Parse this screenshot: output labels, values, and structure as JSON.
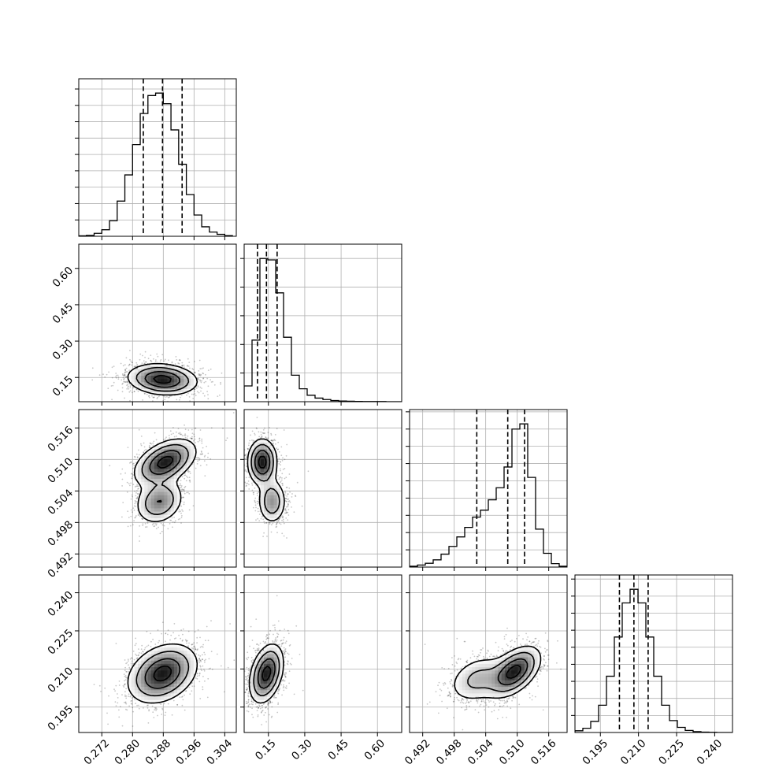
{
  "chart_data": {
    "type": "corner",
    "title": "",
    "params": [
      {
        "label": "",
        "range": [
          0.266,
          0.307
        ],
        "ticks": [
          0.272,
          0.28,
          0.288,
          0.296,
          0.304
        ],
        "tick_labels": [
          "0.272",
          "0.280",
          "0.288",
          "0.296",
          "0.304"
        ],
        "quantiles": [
          0.2828,
          0.2878,
          0.2929
        ],
        "median": 0.2878,
        "sigma": 0.0045
      },
      {
        "label": "",
        "range": [
          0.05,
          0.7
        ],
        "ticks": [
          0.15,
          0.3,
          0.45,
          0.6
        ],
        "tick_labels": [
          "0.15",
          "0.30",
          "0.45",
          "0.60"
        ],
        "quantiles": [
          0.105,
          0.142,
          0.186
        ],
        "median": 0.142,
        "sigma": 0.04
      },
      {
        "label": "",
        "range": [
          0.4895,
          0.5195
        ],
        "ticks": [
          0.492,
          0.498,
          0.504,
          0.51,
          0.516
        ],
        "tick_labels": [
          "0.492",
          "0.498",
          "0.504",
          "0.510",
          "0.516"
        ],
        "quantiles": [
          0.5023,
          0.5082,
          0.5114
        ],
        "median": 0.5082,
        "sigma": 0.004
      },
      {
        "label": "",
        "range": [
          0.185,
          0.247
        ],
        "ticks": [
          0.195,
          0.21,
          0.225,
          0.24
        ],
        "tick_labels": [
          "0.195",
          "0.210",
          "0.225",
          "0.240"
        ],
        "quantiles": [
          0.2025,
          0.2082,
          0.2138
        ],
        "median": 0.2082,
        "sigma": 0.0058
      }
    ],
    "histograms": [
      {
        "param": 0,
        "bin_edges": [
          0.266,
          0.268,
          0.27,
          0.272,
          0.274,
          0.276,
          0.278,
          0.28,
          0.282,
          0.284,
          0.286,
          0.288,
          0.29,
          0.292,
          0.294,
          0.296,
          0.298,
          0.3,
          0.302,
          0.304,
          0.306
        ],
        "counts": [
          3,
          6,
          18,
          40,
          95,
          215,
          375,
          560,
          750,
          860,
          875,
          810,
          650,
          440,
          255,
          130,
          58,
          26,
          12,
          4
        ]
      },
      {
        "param": 1,
        "bin_edges": [
          0.05,
          0.0825,
          0.115,
          0.1475,
          0.18,
          0.2125,
          0.245,
          0.2775,
          0.31,
          0.3425,
          0.375,
          0.4075,
          0.44,
          0.4725,
          0.505,
          0.5375,
          0.57,
          0.6025,
          0.635,
          0.6675,
          0.7
        ],
        "counts": [
          110,
          430,
          1000,
          990,
          760,
          450,
          185,
          90,
          45,
          25,
          15,
          8,
          5,
          3,
          2,
          1,
          1,
          1,
          0,
          0
        ]
      },
      {
        "param": 2,
        "bin_edges": [
          0.4895,
          0.491,
          0.4925,
          0.494,
          0.4955,
          0.497,
          0.4985,
          0.5,
          0.5015,
          0.503,
          0.5045,
          0.506,
          0.5075,
          0.509,
          0.5105,
          0.512,
          0.5135,
          0.515,
          0.5165,
          0.518,
          0.5195
        ],
        "counts": [
          5,
          12,
          22,
          42,
          75,
          120,
          175,
          230,
          290,
          330,
          390,
          460,
          580,
          800,
          830,
          520,
          220,
          80,
          20,
          5
        ]
      },
      {
        "param": 3,
        "bin_edges": [
          0.185,
          0.1881,
          0.1912,
          0.1943,
          0.1974,
          0.2005,
          0.2036,
          0.2067,
          0.2098,
          0.2129,
          0.216,
          0.2191,
          0.2222,
          0.2253,
          0.2284,
          0.2315,
          0.2346,
          0.2377,
          0.2408,
          0.2439,
          0.247
        ],
        "counts": [
          10,
          25,
          65,
          160,
          330,
          560,
          760,
          840,
          760,
          560,
          330,
          160,
          70,
          30,
          12,
          5,
          2,
          1,
          0,
          0
        ]
      }
    ],
    "pairs": [
      {
        "x_param": 0,
        "y_param": 1,
        "components": [
          {
            "mean": [
              0.2878,
              0.142
            ],
            "sd": [
              0.0045,
              0.032
            ],
            "rho": -0.15,
            "weight": 1.0
          }
        ]
      },
      {
        "x_param": 0,
        "y_param": 2,
        "components": [
          {
            "mean": [
              0.2885,
              0.5095
            ],
            "sd": [
              0.004,
              0.0022
            ],
            "rho": 0.45,
            "weight": 0.65
          },
          {
            "mean": [
              0.287,
              0.502
            ],
            "sd": [
              0.0032,
              0.0022
            ],
            "rho": 0.2,
            "weight": 0.35
          }
        ]
      },
      {
        "x_param": 1,
        "y_param": 2,
        "components": [
          {
            "mean": [
              0.125,
              0.5095
            ],
            "sd": [
              0.03,
              0.0022
            ],
            "rho": 0.0,
            "weight": 0.65
          },
          {
            "mean": [
              0.165,
              0.502
            ],
            "sd": [
              0.03,
              0.0022
            ],
            "rho": 0.0,
            "weight": 0.35
          }
        ]
      },
      {
        "x_param": 0,
        "y_param": 3,
        "components": [
          {
            "mean": [
              0.2878,
              0.2082
            ],
            "sd": [
              0.0045,
              0.0058
            ],
            "rho": 0.3,
            "weight": 1.0
          }
        ]
      },
      {
        "x_param": 1,
        "y_param": 3,
        "components": [
          {
            "mean": [
              0.142,
              0.2082
            ],
            "sd": [
              0.035,
              0.0058
            ],
            "rho": 0.35,
            "weight": 1.0
          }
        ]
      },
      {
        "x_param": 2,
        "y_param": 3,
        "components": [
          {
            "mean": [
              0.5095,
              0.209
            ],
            "sd": [
              0.0025,
              0.005
            ],
            "rho": 0.5,
            "weight": 0.65
          },
          {
            "mean": [
              0.5025,
              0.206
            ],
            "sd": [
              0.003,
              0.005
            ],
            "rho": 0.3,
            "weight": 0.35
          }
        ]
      }
    ],
    "contour_levels_sigma": [
      0.5,
      1.0,
      1.5,
      2.0
    ],
    "grid": true,
    "colors": {
      "line": "#000000",
      "grid": "#b0b0b0",
      "background": "#ffffff",
      "points": "#000000"
    }
  }
}
